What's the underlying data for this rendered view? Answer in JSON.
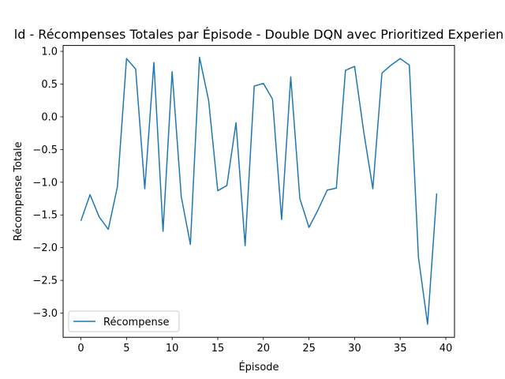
{
  "chart_data": {
    "type": "line",
    "title": "ld - Récompenses Totales par Épisode - Double DQN avec Prioritized Experien",
    "xlabel": "Épisode",
    "ylabel": "Récompense Totale",
    "xlim": [
      -1.95,
      40.95
    ],
    "ylim": [
      -3.37,
      1.09
    ],
    "xticks": [
      0,
      5,
      10,
      15,
      20,
      25,
      30,
      35,
      40
    ],
    "yticks": [
      -3.0,
      -2.5,
      -2.0,
      -1.5,
      -1.0,
      -0.5,
      0.0,
      0.5,
      1.0
    ],
    "xtick_labels": [
      "0",
      "5",
      "10",
      "15",
      "20",
      "25",
      "30",
      "35",
      "40"
    ],
    "ytick_labels": [
      "−3.0",
      "−2.5",
      "−2.0",
      "−1.5",
      "−1.0",
      "−0.5",
      "0.0",
      "0.5",
      "1.0"
    ],
    "grid": false,
    "legend_position": "lower-left",
    "series": [
      {
        "name": "Récompense",
        "color": "#1f77b4",
        "x": [
          0,
          1,
          2,
          3,
          4,
          5,
          6,
          7,
          8,
          9,
          10,
          11,
          12,
          13,
          14,
          15,
          16,
          17,
          18,
          19,
          20,
          21,
          22,
          23,
          24,
          25,
          26,
          27,
          28,
          29,
          30,
          31,
          32,
          33,
          34,
          35,
          36,
          37,
          38,
          39
        ],
        "values": [
          -1.59,
          -1.19,
          -1.53,
          -1.72,
          -1.07,
          0.89,
          0.73,
          -1.1,
          0.83,
          -1.75,
          0.69,
          -1.22,
          -1.95,
          0.91,
          0.25,
          -1.13,
          -1.05,
          -0.09,
          -1.97,
          0.47,
          0.51,
          0.27,
          -1.57,
          0.61,
          -1.25,
          -1.69,
          -1.42,
          -1.12,
          -1.09,
          0.71,
          0.77,
          -0.23,
          -1.1,
          0.67,
          0.79,
          0.89,
          0.79,
          -2.15,
          -3.17,
          -1.17
        ]
      }
    ]
  }
}
